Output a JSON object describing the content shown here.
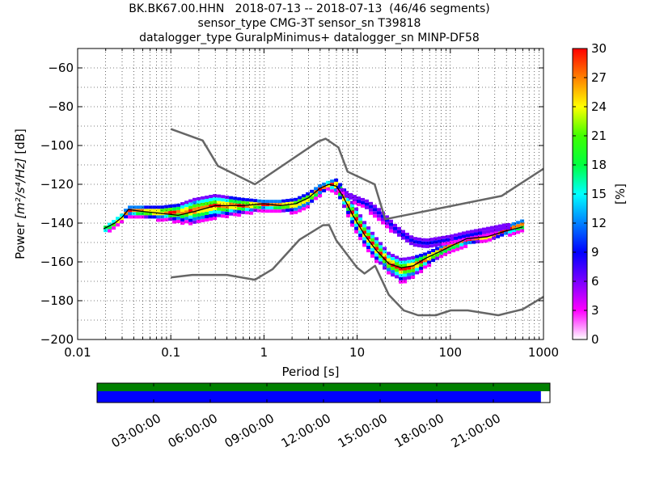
{
  "chart_data": {
    "type": "heatmap",
    "subtype": "PPSD probabilistic power spectral density",
    "title_lines": [
      "BK.BK67.00.HHN   2018-07-13 -- 2018-07-13  (46/46 segments)",
      "sensor_type CMG-3T sensor_sn T39818",
      "datalogger_type GuralpMinimus+ datalogger_sn MINP-DF58"
    ],
    "xlabel": "Period [s]",
    "ylabel_prefix": "Power ",
    "ylabel_unit": "[m²/s⁴/Hz]",
    "ylabel_suffix": " [dB]",
    "xscale": "log",
    "xlim": [
      0.01,
      1000
    ],
    "ylim": [
      -200,
      -50
    ],
    "x_ticks": [
      {
        "value": 0.01,
        "label": "0.01"
      },
      {
        "value": 0.1,
        "label": "0.1"
      },
      {
        "value": 1,
        "label": "1"
      },
      {
        "value": 10,
        "label": "10"
      },
      {
        "value": 100,
        "label": "100"
      },
      {
        "value": 1000,
        "label": "1000"
      }
    ],
    "y_ticks": [
      {
        "value": -60,
        "label": "−60"
      },
      {
        "value": -80,
        "label": "−80"
      },
      {
        "value": -100,
        "label": "−100"
      },
      {
        "value": -120,
        "label": "−120"
      },
      {
        "value": -140,
        "label": "−140"
      },
      {
        "value": -160,
        "label": "−160"
      },
      {
        "value": -180,
        "label": "−180"
      },
      {
        "value": -200,
        "label": "−200"
      }
    ],
    "grid": true,
    "colorbar": {
      "label": "[%]",
      "range": [
        0,
        30
      ],
      "ticks": [
        {
          "value": 0,
          "label": "0"
        },
        {
          "value": 3,
          "label": "3"
        },
        {
          "value": 6,
          "label": "6"
        },
        {
          "value": 9,
          "label": "9"
        },
        {
          "value": 12,
          "label": "12"
        },
        {
          "value": 15,
          "label": "15"
        },
        {
          "value": 18,
          "label": "18"
        },
        {
          "value": 21,
          "label": "21"
        },
        {
          "value": 24,
          "label": "24"
        },
        {
          "value": 27,
          "label": "27"
        },
        {
          "value": 30,
          "label": "30"
        }
      ],
      "colors": [
        "#ffffff",
        "#ff00ff",
        "#7a00ff",
        "#0000ff",
        "#0080ff",
        "#00ffff",
        "#00ff40",
        "#40ff00",
        "#ffff00",
        "#ff8000",
        "#ff0000"
      ]
    },
    "series": [
      {
        "role": "high-noise-model",
        "color": "#666666",
        "x": [
          0.1,
          0.22,
          0.32,
          0.8,
          3.8,
          4.6,
          6.3,
          7.9,
          15.4,
          20,
          354.8,
          1000
        ],
        "y": [
          -91.5,
          -97.4,
          -110.5,
          -120,
          -98,
          -96.5,
          -101,
          -113.5,
          -120,
          -138,
          -126,
          -112
        ]
      },
      {
        "role": "low-noise-model",
        "color": "#666666",
        "x": [
          0.1,
          0.17,
          0.4,
          0.8,
          1.24,
          2.4,
          4.3,
          5,
          6,
          10,
          12,
          15.6,
          21.9,
          31.6,
          45,
          70,
          101,
          154,
          328,
          600,
          1000
        ],
        "y": [
          -168,
          -166.7,
          -166.7,
          -169.2,
          -163.7,
          -148.6,
          -141.1,
          -141,
          -149,
          -163,
          -166,
          -162,
          -177,
          -185,
          -187.5,
          -187.5,
          -185,
          -185,
          -187.5,
          -184.4,
          -178
        ]
      },
      {
        "role": "mode-line",
        "color": "#000000",
        "x": [
          0.019,
          0.025,
          0.03,
          0.035,
          0.05,
          0.08,
          0.12,
          0.18,
          0.3,
          0.6,
          1.0,
          1.5,
          2.2,
          3.0,
          4.0,
          5.0,
          6.0,
          7.0,
          9.0,
          12,
          16,
          22,
          30,
          40,
          55,
          75,
          100,
          150,
          250,
          400,
          600
        ],
        "y": [
          -143,
          -140,
          -137,
          -133,
          -134,
          -135,
          -136,
          -134,
          -131,
          -131,
          -130,
          -131,
          -130,
          -127,
          -122,
          -120,
          -121,
          -126,
          -136,
          -146,
          -154,
          -161,
          -163,
          -162,
          -158,
          -155,
          -152,
          -148,
          -147,
          -144,
          -142
        ]
      }
    ],
    "density_bands": [
      {
        "x": [
          0.019,
          0.025,
          0.03,
          0.035,
          0.05,
          0.08,
          0.12,
          0.18,
          0.3,
          0.6,
          1.0,
          1.5,
          2.2,
          3.0,
          4.0,
          5.0,
          6.0,
          7.0,
          9.0,
          12,
          16,
          22,
          30,
          40,
          55,
          75,
          100,
          150,
          250,
          400,
          600
        ],
        "upper": [
          -142,
          -138,
          -135,
          -131,
          -131,
          -131,
          -130,
          -127,
          -125,
          -127,
          -128,
          -128,
          -127,
          -124,
          -120,
          -118,
          -117,
          -121,
          -129,
          -139,
          -147,
          -155,
          -158,
          -157,
          -155,
          -152,
          -149,
          -146,
          -145,
          -141,
          -138
        ],
        "lower": [
          -145,
          -142,
          -139,
          -136,
          -137,
          -138,
          -139,
          -140,
          -137,
          -135,
          -133,
          -134,
          -134,
          -131,
          -125,
          -122,
          -124,
          -130,
          -141,
          -151,
          -159,
          -166,
          -170,
          -168,
          -162,
          -158,
          -155,
          -151,
          -149,
          -146,
          -144
        ]
      },
      {
        "x": [
          6,
          8,
          10,
          13,
          16,
          20,
          25,
          30,
          40,
          55,
          75,
          100,
          150,
          250,
          400
        ],
        "upper": [
          -120,
          -124,
          -126,
          -128,
          -131,
          -135,
          -140,
          -143,
          -147,
          -148,
          -147,
          -146,
          -144,
          -142,
          -140
        ],
        "lower": [
          -122,
          -127,
          -130,
          -133,
          -137,
          -141,
          -145,
          -148,
          -152,
          -153,
          -152,
          -150,
          -148,
          -146,
          -143
        ]
      }
    ],
    "timeline": {
      "ticks": [
        {
          "value": 3,
          "label": "03:00:00"
        },
        {
          "value": 6,
          "label": "06:00:00"
        },
        {
          "value": 9,
          "label": "09:00:00"
        },
        {
          "value": 12,
          "label": "12:00:00"
        },
        {
          "value": 15,
          "label": "15:00:00"
        },
        {
          "value": 18,
          "label": "18:00:00"
        },
        {
          "value": 21,
          "label": "21:00:00"
        }
      ],
      "range_hours": [
        0,
        24
      ],
      "green_coverage": 1.0,
      "blue_coverage": 0.98,
      "green_color": "#008000",
      "blue_color": "#0000ff"
    },
    "colors": {
      "model_line": "#666666",
      "mode_line": "#000000",
      "grid": "#000000"
    }
  }
}
